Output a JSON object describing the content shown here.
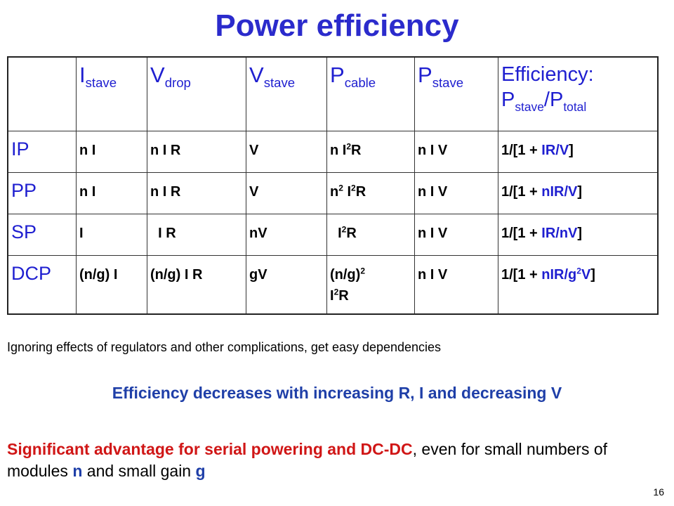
{
  "title": "Power efficiency",
  "table": {
    "headers": [
      {
        "base": "I",
        "sub": "stave"
      },
      {
        "base": "V",
        "sub": "drop"
      },
      {
        "base": "V",
        "sub": "stave"
      },
      {
        "base": "P",
        "sub": "cable"
      },
      {
        "base": "P",
        "sub": "stave"
      },
      {
        "line1": "Efficiency:",
        "base": "P",
        "sub": "stave",
        "sep": "/P",
        "sub2": "total"
      }
    ],
    "rows": [
      {
        "label": "IP",
        "c1": "n  I",
        "c2": "n  I R",
        "c3": "V",
        "c4": "n I",
        "c4sup": "2",
        "c4b": "R",
        "c5": "n  I V",
        "c6a": "1/[1 + ",
        "c6b": "IR/V",
        "c6c": "]"
      },
      {
        "label": "PP",
        "c1": "n  I",
        "c2": "n  I R",
        "c3": "V",
        "c4": "n",
        "c4sup": "2",
        "c4b": " I",
        "c4sup2": "2",
        "c4c": "R",
        "c5": "n  I V",
        "c6a": "1/[1 + ",
        "c6b": "nIR/V",
        "c6c": "]"
      },
      {
        "label": "SP",
        "c1": "I",
        "c2": "  I R",
        "c3": "nV",
        "c4": "  I",
        "c4sup": "2",
        "c4b": "R",
        "c5": "n  I V",
        "c6a": "1/[1 + ",
        "c6b": "IR/nV",
        "c6c": "]"
      },
      {
        "label": "DCP",
        "c1": "(n/g) I",
        "c2": "(n/g)  I R",
        "c3": "gV",
        "c4": "(n/g)",
        "c4sup": "2",
        "c4b": "I",
        "c4sup2": "2",
        "c4c": "R",
        "c5": "n  I V",
        "c6a": "1/[1 + ",
        "c6b": "nIR/g",
        "c6sup": "2",
        "c6b2": "V",
        "c6c": "]"
      }
    ]
  },
  "note": "Ignoring effects of regulators and other complications, get easy dependencies",
  "conclusion": "Efficiency decreases with increasing R, I and decreasing V",
  "advantage": {
    "bold": "Significant advantage for serial powering and DC-DC",
    "rest1": ", even for small numbers of modules ",
    "n": "n",
    "rest2": " and small gain ",
    "g": "g"
  },
  "page_number": "16",
  "colors": {
    "title": "#2b2bcc",
    "header": "#1f1fd0",
    "conclusion": "#1f3fa8",
    "advantage": "#d01616"
  }
}
